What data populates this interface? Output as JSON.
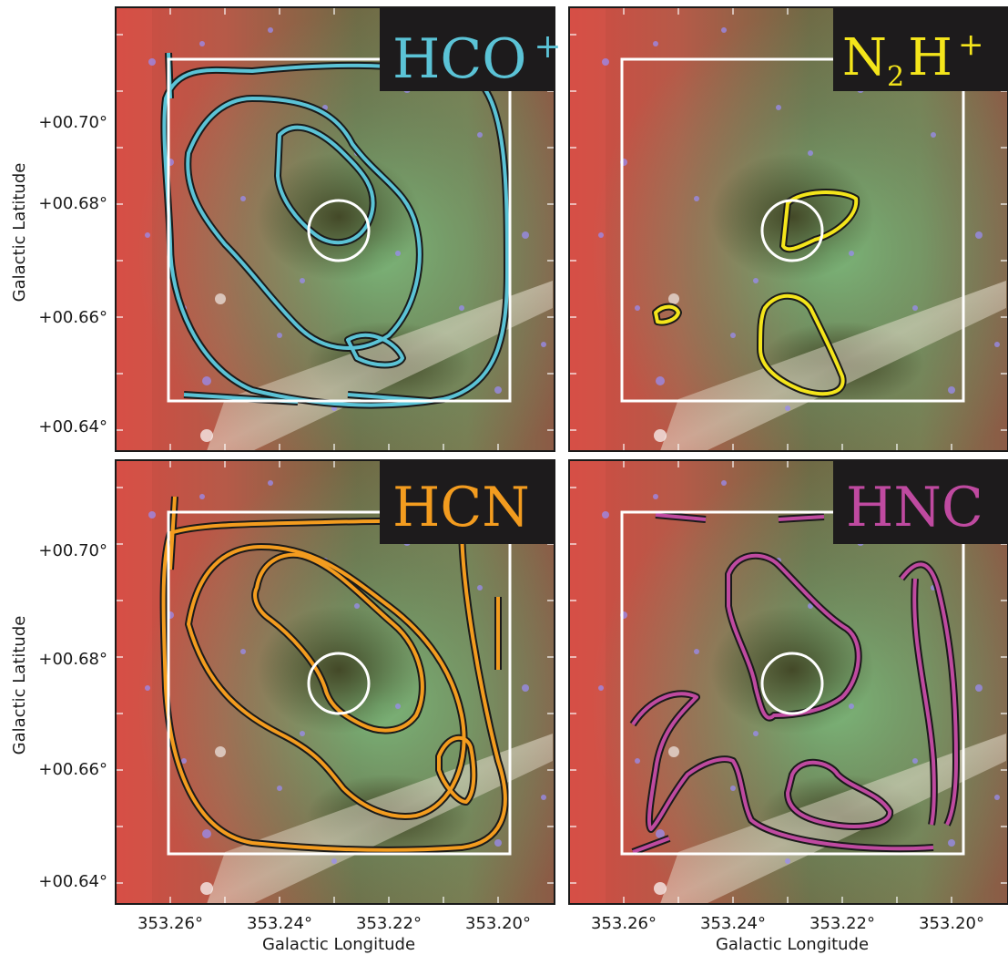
{
  "figure": {
    "y_axis_label": "Galactic Latitude",
    "x_axis_label": "Galactic Longitude",
    "x_ticks": [
      "353.26°",
      "353.24°",
      "353.22°",
      "353.20°"
    ],
    "y_ticks": [
      "+00.70°",
      "+00.68°",
      "+00.66°",
      "+00.64°"
    ]
  },
  "panels": [
    {
      "id": "hcop",
      "label_main": "HCO",
      "label_sup": "+",
      "label_sub": "",
      "label_tail": "",
      "color": "#5bc3d6"
    },
    {
      "id": "n2hp",
      "label_main": "N",
      "label_sub": "2",
      "label_tail": "H",
      "label_sup": "+",
      "color": "#f4e51b"
    },
    {
      "id": "hcn",
      "label_main": "HCN",
      "label_sup": "",
      "label_sub": "",
      "label_tail": "",
      "color": "#f39c1f"
    },
    {
      "id": "hnc",
      "label_main": "HNC",
      "label_sup": "",
      "label_sub": "",
      "label_tail": "",
      "color": "#bf4aa0"
    }
  ],
  "colors": {
    "background_red": "#c9453f",
    "background_green": "#7fa87a",
    "box": "#ffffff",
    "label_bg": "#1d1b1c"
  }
}
